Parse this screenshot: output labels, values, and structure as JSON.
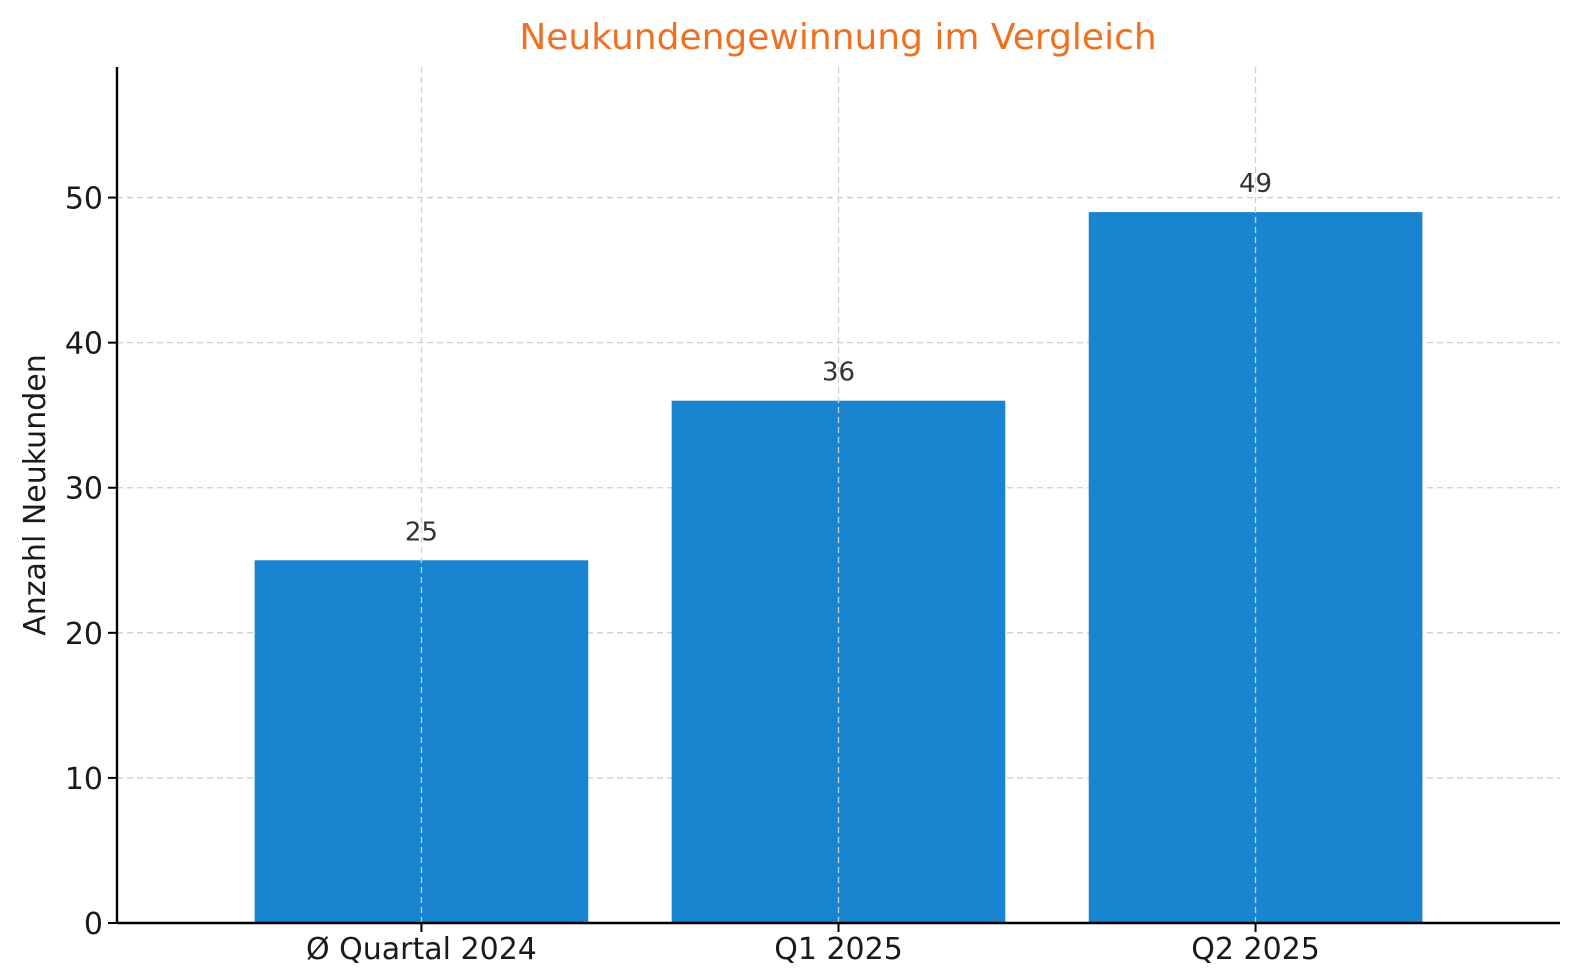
{
  "chart_data": {
    "type": "bar",
    "title": "Neukundengewinnung im Vergleich",
    "xlabel": "",
    "ylabel": "Anzahl Neukunden",
    "categories": [
      "Ø Quartal 2024",
      "Q1 2025",
      "Q2 2025"
    ],
    "values": [
      25,
      36,
      49
    ],
    "data_labels": [
      "25",
      "36",
      "49"
    ],
    "ylim": [
      0,
      59
    ],
    "yticks": [
      0,
      10,
      20,
      30,
      40,
      50
    ],
    "ytick_labels": [
      "0",
      "10",
      "20",
      "30",
      "40",
      "50"
    ],
    "grid": true,
    "legend": "none",
    "colors": {
      "bar": "#1985d1",
      "title": "#f07021",
      "axis": "#000000",
      "grid": "#cfcfcf"
    }
  }
}
